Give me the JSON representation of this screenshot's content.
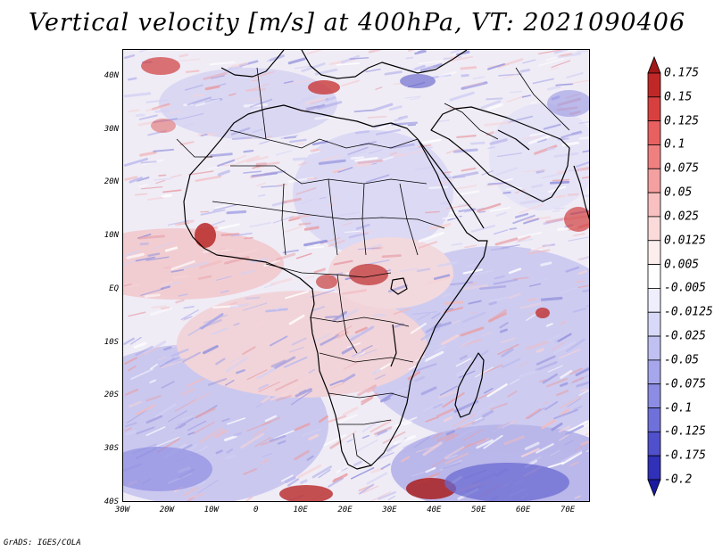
{
  "title": "Vertical velocity [m/s] at 400hPa, VT: 2021090406",
  "footer": "GrADS: IGES/COLA",
  "lat_labels": [
    "40N",
    "30N",
    "20N",
    "10N",
    "EQ",
    "10S",
    "20S",
    "30S",
    "40S"
  ],
  "lat_values": [
    40,
    30,
    20,
    10,
    0,
    -10,
    -20,
    -30,
    -40
  ],
  "lon_labels": [
    "30W",
    "20W",
    "10W",
    "0",
    "10E",
    "20E",
    "30E",
    "40E",
    "50E",
    "60E",
    "70E"
  ],
  "lon_values": [
    -30,
    -20,
    -10,
    0,
    10,
    20,
    30,
    40,
    50,
    60,
    70
  ],
  "colorbar": {
    "labels": [
      "0.175",
      "0.15",
      "0.125",
      "0.1",
      "0.075",
      "0.05",
      "0.025",
      "0.0125",
      "0.005",
      "-0.005",
      "-0.0125",
      "-0.025",
      "-0.05",
      "-0.075",
      "-0.1",
      "-0.125",
      "-0.175",
      "-0.2"
    ],
    "colors": [
      "#a01818",
      "#c02828",
      "#d84040",
      "#e86060",
      "#f08080",
      "#f5a0a0",
      "#f8c0c0",
      "#fbdada",
      "#fdeeee",
      "#ffffff",
      "#eeeefd",
      "#d8d8f8",
      "#c0c0f2",
      "#a6a6ec",
      "#8c8ce4",
      "#7070da",
      "#5050cc",
      "#3030b8",
      "#1a1aa0"
    ]
  },
  "colors": {
    "field_base_neutral": "#f1eef6",
    "field_red": "#e07070",
    "field_blue": "#7878d8",
    "coastline": "#000000"
  }
}
